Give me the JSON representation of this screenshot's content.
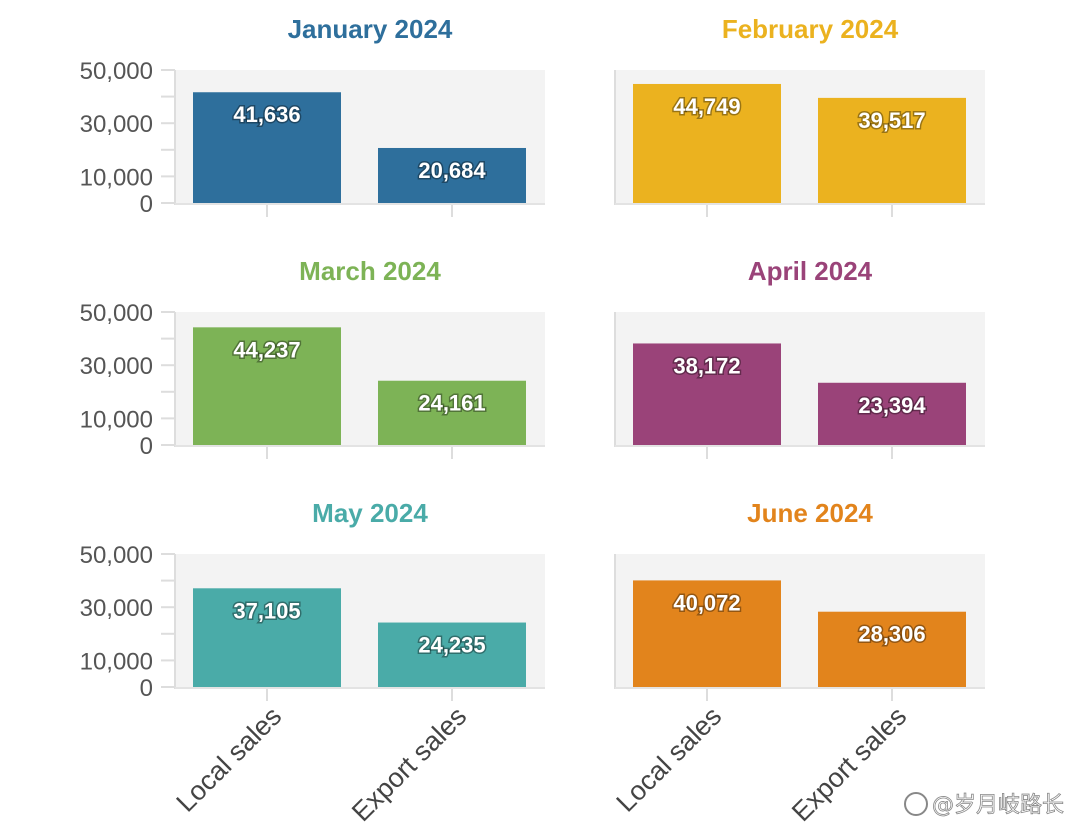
{
  "chart_data": [
    {
      "type": "bar",
      "title": "January 2024",
      "color": "#2e6f9c",
      "categories": [
        "Local sales",
        "Export sales"
      ],
      "values": [
        41636,
        20684
      ],
      "labels": [
        "41,636",
        "20,684"
      ],
      "ylim": [
        0,
        50000
      ],
      "yticks": [
        "0",
        "10,000",
        "30,000",
        "50,000"
      ]
    },
    {
      "type": "bar",
      "title": "February 2024",
      "color": "#ebb21f",
      "categories": [
        "Local sales",
        "Export sales"
      ],
      "values": [
        44749,
        39517
      ],
      "labels": [
        "44,749",
        "39,517"
      ],
      "ylim": [
        0,
        50000
      ],
      "yticks": []
    },
    {
      "type": "bar",
      "title": "March 2024",
      "color": "#7db356",
      "categories": [
        "Local sales",
        "Export sales"
      ],
      "values": [
        44237,
        24161
      ],
      "labels": [
        "44,237",
        "24,161"
      ],
      "ylim": [
        0,
        50000
      ],
      "yticks": [
        "0",
        "10,000",
        "30,000",
        "50,000"
      ]
    },
    {
      "type": "bar",
      "title": "April 2024",
      "color": "#9a4379",
      "categories": [
        "Local sales",
        "Export sales"
      ],
      "values": [
        38172,
        23394
      ],
      "labels": [
        "38,172",
        "23,394"
      ],
      "ylim": [
        0,
        50000
      ],
      "yticks": []
    },
    {
      "type": "bar",
      "title": "May 2024",
      "color": "#4aaba8",
      "categories": [
        "Local sales",
        "Export sales"
      ],
      "values": [
        37105,
        24235
      ],
      "labels": [
        "37,105",
        "24,235"
      ],
      "ylim": [
        0,
        50000
      ],
      "yticks": [
        "0",
        "10,000",
        "30,000",
        "50,000"
      ]
    },
    {
      "type": "bar",
      "title": "June 2024",
      "color": "#e2841c",
      "categories": [
        "Local sales",
        "Export sales"
      ],
      "values": [
        40072,
        28306
      ],
      "labels": [
        "40,072",
        "28,306"
      ],
      "ylim": [
        0,
        50000
      ],
      "yticks": []
    }
  ],
  "x_axis_labels": [
    "Local sales",
    "Export sales"
  ],
  "watermark": "@岁月岐路长"
}
